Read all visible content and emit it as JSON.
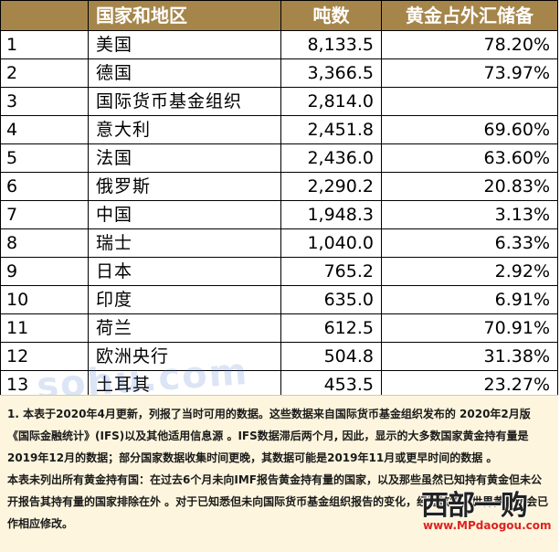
{
  "table": {
    "headers": {
      "rank": "",
      "name": "国家和地区",
      "tons": "吨数",
      "pct": "黄金占外汇储备"
    },
    "rows": [
      {
        "rank": "1",
        "name": "美国",
        "tons": "8,133.5",
        "pct": "78.20%"
      },
      {
        "rank": "2",
        "name": "德国",
        "tons": "3,366.5",
        "pct": "73.97%"
      },
      {
        "rank": "3",
        "name": "国际货币基金组织",
        "tons": "2,814.0",
        "pct": ""
      },
      {
        "rank": "4",
        "name": "意大利",
        "tons": "2,451.8",
        "pct": "69.60%"
      },
      {
        "rank": "5",
        "name": "法国",
        "tons": "2,436.0",
        "pct": "63.60%"
      },
      {
        "rank": "6",
        "name": "俄罗斯",
        "tons": "2,290.2",
        "pct": "20.83%"
      },
      {
        "rank": "7",
        "name": "中国",
        "tons": "1,948.3",
        "pct": "3.13%"
      },
      {
        "rank": "8",
        "name": "瑞士",
        "tons": "1,040.0",
        "pct": "6.33%"
      },
      {
        "rank": "9",
        "name": "日本",
        "tons": "765.2",
        "pct": "2.92%"
      },
      {
        "rank": "10",
        "name": "印度",
        "tons": "635.0",
        "pct": "6.91%"
      },
      {
        "rank": "11",
        "name": "荷兰",
        "tons": "612.5",
        "pct": "70.91%"
      },
      {
        "rank": "12",
        "name": "欧洲央行",
        "tons": "504.8",
        "pct": "31.38%"
      },
      {
        "rank": "13",
        "name": "土耳其",
        "tons": "453.5",
        "pct": "23.27%"
      }
    ]
  },
  "notes": {
    "note1": "1. 本表于2020年4月更新，列报了当时可用的数据。这些数据来自国际货币基金组织发布的 2020年2月版《国际金融统计》(IFS)以及其他适用信息源 。IFS数据滞后两个月, 因此，显示的大多数国家黄金持有量是2019年12月的数据；部分国家数据收集时间更晚，其数据可能是2019年11月或更早时间的数据 。",
    "note2": "本表未列出所有黄金持有国：在过去6个月未向IMF报告黄金持有量的国家，以及那些虽然已知持有黄金但未公开报告其持有量的国家排除在外 。对于已知悉但未向国际货币基金组织报告的变化，经过核实，世界黄金协会已作相应修改。"
  },
  "watermarks": {
    "middle": "sohu.com",
    "logo_text": "西部一购",
    "logo_site": "www.MPdaogou.com"
  },
  "colors": {
    "header_bg": "#a6854a",
    "header_text": "#ffffff",
    "note_bg": "#fdf5dd"
  }
}
